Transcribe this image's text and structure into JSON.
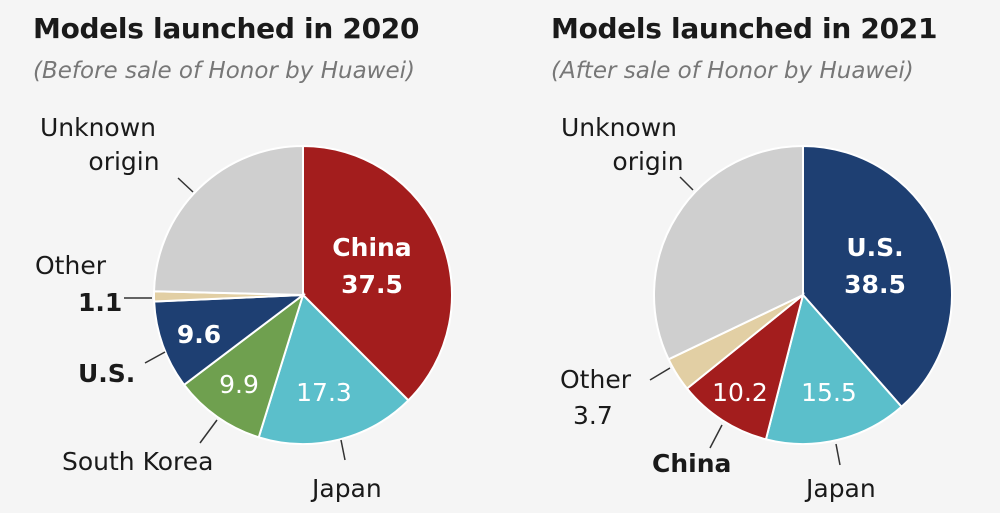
{
  "chart_data": [
    {
      "type": "pie",
      "title": "Models launched in 2020",
      "subtitle": "(Before sale of Honor by Huawei)",
      "slices": [
        {
          "label": "China",
          "value": 37.5,
          "color": "#a31d1d"
        },
        {
          "label": "Japan",
          "value": 17.3,
          "color": "#5bbfcb"
        },
        {
          "label": "South Korea",
          "value": 9.9,
          "color": "#6fa04f"
        },
        {
          "label": "U.S.",
          "value": 9.6,
          "color": "#1e3f72"
        },
        {
          "label": "Other",
          "value": 1.1,
          "color": "#e2cfa4"
        },
        {
          "label": "Unknown origin",
          "value": 24.6,
          "color": "#cfcfcf"
        }
      ],
      "labels": {
        "china": "China",
        "china_value": "37.5",
        "japan": "Japan",
        "japan_value": "17.3",
        "korea": "South Korea",
        "korea_value": "9.9",
        "us": "U.S.",
        "us_value": "9.6",
        "other": "Other",
        "other_value": "1.1",
        "unknown_1": "Unknown",
        "unknown_2": "origin"
      }
    },
    {
      "type": "pie",
      "title": "Models launched in 2021",
      "subtitle": "(After sale of Honor by Huawei)",
      "slices": [
        {
          "label": "U.S.",
          "value": 38.5,
          "color": "#1e3f72"
        },
        {
          "label": "Japan",
          "value": 15.5,
          "color": "#5bbfcb"
        },
        {
          "label": "China",
          "value": 10.2,
          "color": "#a31d1d"
        },
        {
          "label": "Other",
          "value": 3.7,
          "color": "#e2cfa4"
        },
        {
          "label": "Unknown origin",
          "value": 32.1,
          "color": "#cfcfcf"
        }
      ],
      "labels": {
        "us": "U.S.",
        "us_value": "38.5",
        "japan": "Japan",
        "japan_value": "15.5",
        "china": "China",
        "china_value": "10.2",
        "other": "Other",
        "other_value": "3.7",
        "unknown_1": "Unknown",
        "unknown_2": "origin"
      }
    }
  ]
}
